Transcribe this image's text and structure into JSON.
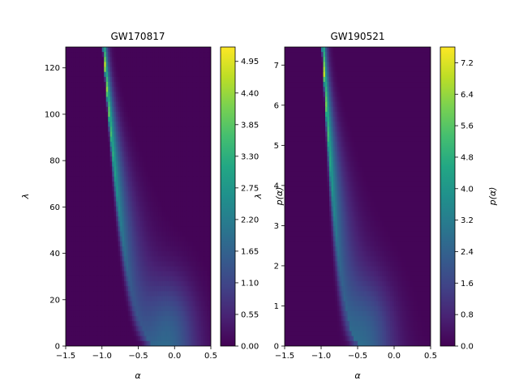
{
  "figure": {
    "colormap": "viridis",
    "background": "#ffffff"
  },
  "chart_data": [
    {
      "type": "heatmap",
      "title": "GW170817",
      "xlabel": "α",
      "ylabel": "λ",
      "xlim": [
        -1.5,
        0.5
      ],
      "ylim": [
        0,
        129
      ],
      "xticks": [
        "−1.5",
        "−1.0",
        "−0.5",
        "0.0",
        "0.5"
      ],
      "xtick_values": [
        -1.5,
        -1.0,
        -0.5,
        0.0,
        0.5
      ],
      "yticks": [
        "0",
        "20",
        "40",
        "60",
        "80",
        "100",
        "120"
      ],
      "ytick_values": [
        0,
        20,
        40,
        60,
        80,
        100,
        120
      ],
      "density_model": {
        "ridge_alpha_at_top": -0.98,
        "ridge_alpha_at_bottom": -0.25,
        "ridge_peak": 5.2,
        "floor": 0.05,
        "secondary_blob": {
          "alpha": -0.05,
          "lambda": 5,
          "value": 1.3
        }
      },
      "colorbar": {
        "label": "",
        "vmin": 0.0,
        "vmax": 5.2,
        "ticks": [
          "0.00",
          "0.55",
          "1.10",
          "1.65",
          "2.20",
          "2.75",
          "3.30",
          "3.85",
          "4.40",
          "4.95"
        ],
        "tick_values": [
          0.0,
          0.55,
          1.1,
          1.65,
          2.2,
          2.75,
          3.3,
          3.85,
          4.4,
          4.95
        ]
      }
    },
    {
      "type": "heatmap",
      "title": "GW190521",
      "xlabel": "α",
      "ylabel": "λ",
      "xlim": [
        -1.5,
        0.5
      ],
      "ylim": [
        0,
        7.45
      ],
      "xticks": [
        "−1.5",
        "−1.0",
        "−0.5",
        "0.0",
        "0.5"
      ],
      "xtick_values": [
        -1.5,
        -1.0,
        -0.5,
        0.0,
        0.5
      ],
      "yticks": [
        "0",
        "1",
        "2",
        "3",
        "4",
        "5",
        "6",
        "7"
      ],
      "ytick_values": [
        0,
        1,
        2,
        3,
        4,
        5,
        6,
        7
      ],
      "density_model": {
        "ridge_alpha_at_top": -0.98,
        "ridge_alpha_at_bottom": -0.45,
        "ridge_peak": 7.6,
        "floor": 0.08,
        "secondary_blob": {
          "alpha": -0.35,
          "lambda": 0.3,
          "value": 1.6
        }
      },
      "colorbar": {
        "label": "p(α)",
        "vmin": 0.0,
        "vmax": 7.6,
        "ticks": [
          "0.0",
          "0.8",
          "1.6",
          "2.4",
          "3.2",
          "4.0",
          "4.8",
          "5.6",
          "6.4",
          "7.2"
        ],
        "tick_values": [
          0.0,
          0.8,
          1.6,
          2.4,
          3.2,
          4.0,
          4.8,
          5.6,
          6.4,
          7.2
        ]
      }
    }
  ],
  "overlap_label": "p(α)"
}
